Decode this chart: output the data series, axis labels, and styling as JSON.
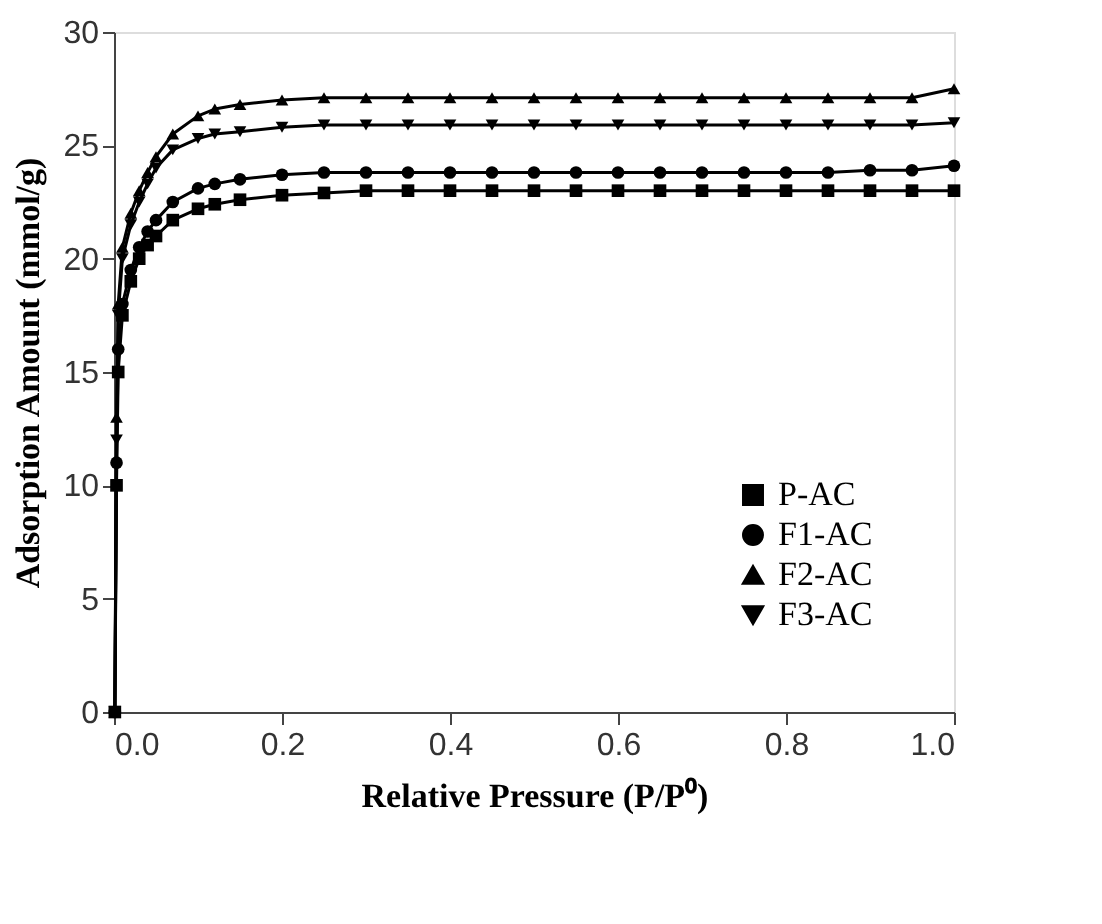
{
  "chart_data": {
    "type": "line",
    "xlabel": "Relative Pressure (P/P⁰)",
    "ylabel": "Adsorption  Amount  (mmol/g)",
    "x": [
      0.001,
      0.003,
      0.005,
      0.01,
      0.02,
      0.03,
      0.04,
      0.05,
      0.07,
      0.1,
      0.12,
      0.15,
      0.2,
      0.25,
      0.3,
      0.35,
      0.4,
      0.45,
      0.5,
      0.55,
      0.6,
      0.65,
      0.7,
      0.75,
      0.8,
      0.85,
      0.9,
      0.95,
      1.0
    ],
    "series": [
      {
        "name": "P-AC",
        "color": "#000000",
        "marker": "square",
        "values": [
          0,
          10,
          15,
          17.5,
          19,
          20,
          20.6,
          21,
          21.7,
          22.2,
          22.4,
          22.6,
          22.8,
          22.9,
          23,
          23,
          23,
          23,
          23,
          23,
          23,
          23,
          23,
          23,
          23,
          23,
          23,
          23,
          23
        ]
      },
      {
        "name": "F1-AC",
        "color": "#000000",
        "marker": "circle",
        "values": [
          0,
          11,
          16,
          18,
          19.5,
          20.5,
          21.2,
          21.7,
          22.5,
          23.1,
          23.3,
          23.5,
          23.7,
          23.8,
          23.8,
          23.8,
          23.8,
          23.8,
          23.8,
          23.8,
          23.8,
          23.8,
          23.8,
          23.8,
          23.8,
          23.8,
          23.9,
          23.9,
          24.1
        ]
      },
      {
        "name": "F2-AC",
        "color": "#000000",
        "marker": "triangle",
        "values": [
          0,
          13,
          18,
          20.5,
          22,
          23,
          23.8,
          24.5,
          25.5,
          26.3,
          26.6,
          26.8,
          27,
          27.1,
          27.1,
          27.1,
          27.1,
          27.1,
          27.1,
          27.1,
          27.1,
          27.1,
          27.1,
          27.1,
          27.1,
          27.1,
          27.1,
          27.1,
          27.5
        ]
      },
      {
        "name": "F3-AC",
        "color": "#000000",
        "marker": "triangle-down",
        "values": [
          0,
          12,
          17.5,
          20,
          21.5,
          22.5,
          23.3,
          24,
          24.8,
          25.3,
          25.5,
          25.6,
          25.8,
          25.9,
          25.9,
          25.9,
          25.9,
          25.9,
          25.9,
          25.9,
          25.9,
          25.9,
          25.9,
          25.9,
          25.9,
          25.9,
          25.9,
          25.9,
          26
        ]
      }
    ],
    "xlim": [
      0,
      1.0
    ],
    "ylim": [
      0,
      30
    ],
    "xticks": [
      {
        "value": 0,
        "label": "0.0"
      },
      0.2,
      0.4,
      0.6,
      0.8,
      {
        "value": 1.0,
        "label": "1.0"
      }
    ],
    "yticks": [
      0,
      5,
      10,
      15,
      20,
      25,
      30
    ],
    "grid": false,
    "legend": "bottom right",
    "line_style": "solid"
  }
}
